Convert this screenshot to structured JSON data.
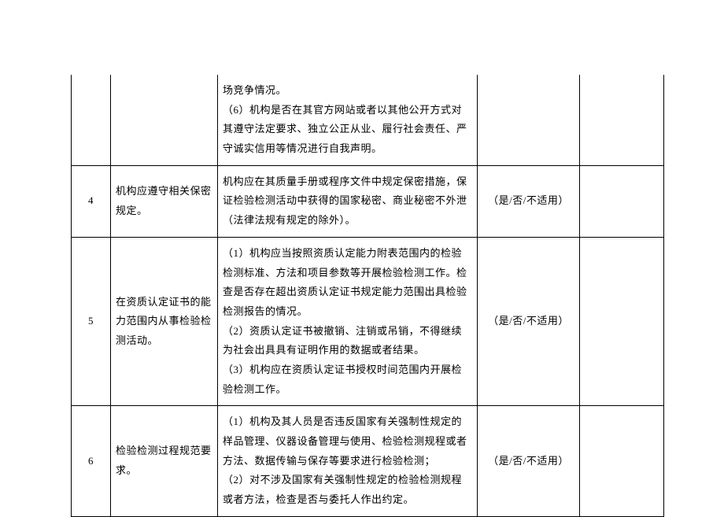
{
  "table": {
    "rows": [
      {
        "num": "",
        "requirement": "",
        "detail": "场竞争情况。\n（6）机构是否在其官方网站或者以其他公开方式对其遵守法定要求、独立公正从业、履行社会责任、严守诚实信用等情况进行自我声明。",
        "result": "",
        "remark": "",
        "continuation": true
      },
      {
        "num": "4",
        "requirement": "机构应遵守相关保密规定。",
        "detail": "机构应在其质量手册或程序文件中规定保密措施，保证检验检测活动中获得的国家秘密、商业秘密不外泄（法律法规有规定的除外）。",
        "result": "（是/否/不适用）",
        "remark": "",
        "continuation": false
      },
      {
        "num": "5",
        "requirement": "在资质认定证书的能力范围内从事检验检测活动。",
        "detail": "（1）机构应当按照资质认定能力附表范围内的检验检测标准、方法和项目参数等开展检验检测工作。检查是否存在超出资质认定证书规定能力范围出具检验检测报告的情况。\n（2）资质认定证书被撤销、注销或吊销，不得继续为社会出具具有证明作用的数据或者结果。\n（3）机构应在资质认定证书授权时间范围内开展检验检测工作。",
        "result": "（是/否/不适用）",
        "remark": "",
        "continuation": false
      },
      {
        "num": "6",
        "requirement": "检验检测过程规范要求。",
        "detail": "（1）机构及其人员是否违反国家有关强制性规定的样品管理、仪器设备管理与使用、检验检测规程或者方法、数据传输与保存等要求进行检验检测；\n（2）对不涉及国家有关强制性规定的检验检测规程或者方法，检查是否与委托人作出约定。",
        "result": "（是/否/不适用）",
        "remark": "",
        "continuation": false
      }
    ]
  }
}
